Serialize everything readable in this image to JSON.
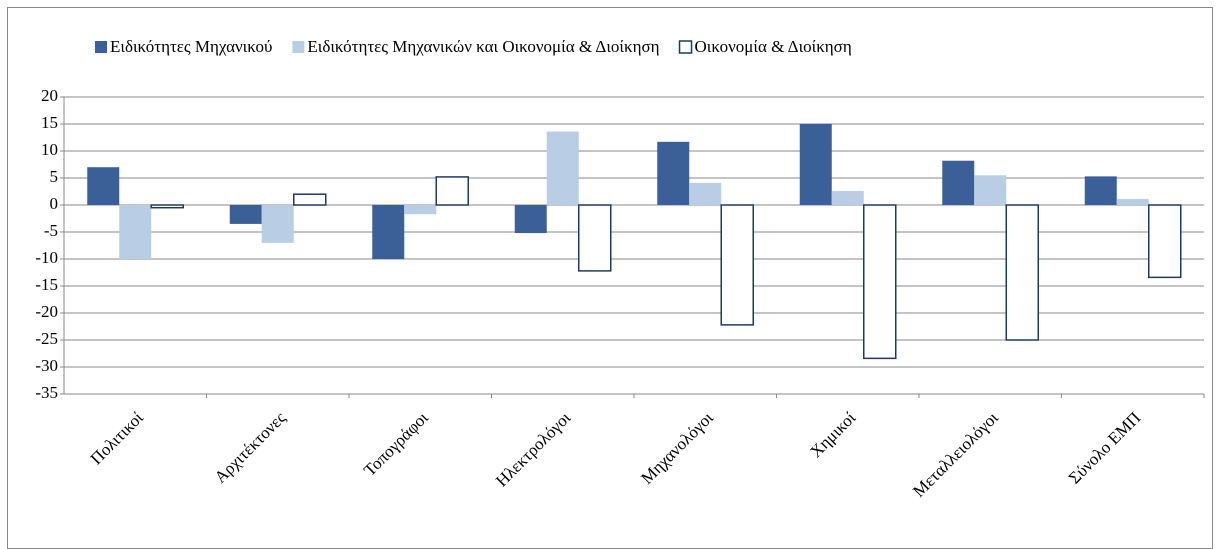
{
  "chart_data": {
    "type": "bar",
    "categories": [
      "Πολιτικοί",
      "Αρχιτέκτονες",
      "Τοπογράφοι",
      "Ηλεκτρολόγοι",
      "Μηχανολόγοι",
      "Χημικοί",
      "Μεταλλειολόγοι",
      "Σύνολο ΕΜΠ"
    ],
    "series": [
      {
        "name": "Ειδικότητες Μηχανικού",
        "color": "#3b6097",
        "values": [
          7,
          -3.5,
          -10,
          -5.2,
          11.7,
          15,
          8.2,
          5.3
        ]
      },
      {
        "name": "Ειδικότητες Μηχανικών και Οικονομία & Διοίκηση",
        "color": "#b9cde5",
        "values": [
          -10,
          -7,
          -1.7,
          13.6,
          4.1,
          2.6,
          5.5,
          1.1
        ]
      },
      {
        "name": "Οικονομία & Διοίκηση",
        "color": "#ffffff",
        "values": [
          -0.5,
          2,
          5.2,
          -12.2,
          -22.2,
          -28.4,
          -25,
          -13.4
        ]
      }
    ],
    "ylim": [
      -35,
      20
    ],
    "yticks": [
      -35,
      -30,
      -25,
      -20,
      -15,
      -10,
      -5,
      0,
      5,
      10,
      15,
      20
    ],
    "grid": true,
    "legend": "top"
  }
}
